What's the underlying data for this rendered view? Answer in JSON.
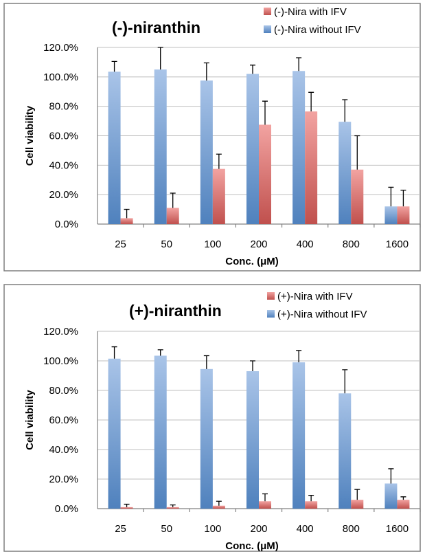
{
  "chart_data": [
    {
      "type": "bar",
      "title": "(-)-niranthin",
      "xlabel": "Conc. (μM)",
      "ylabel": "Cell viability",
      "categories": [
        "25",
        "50",
        "100",
        "200",
        "400",
        "800",
        "1600"
      ],
      "ylim": [
        0,
        120
      ],
      "yticks": [
        "0.0%",
        "20.0%",
        "40.0%",
        "60.0%",
        "80.0%",
        "100.0%",
        "120.0%"
      ],
      "grid": true,
      "legend_position": "top-right",
      "series": [
        {
          "name": "(-)-Nira without IFV",
          "color": "#4f81bd",
          "values": [
            103.5,
            105,
            97.5,
            102,
            104,
            69.5,
            12
          ],
          "errors": [
            7,
            15,
            12,
            6,
            9,
            15,
            13
          ]
        },
        {
          "name": "(-)-Nira with IFV",
          "color": "#c0504d",
          "values": [
            4,
            11,
            37.5,
            67.5,
            76.5,
            37,
            12
          ],
          "errors": [
            6,
            10,
            10,
            16,
            13,
            23,
            11
          ]
        }
      ],
      "legend_order": [
        1,
        0
      ]
    },
    {
      "type": "bar",
      "title": "(+)-niranthin",
      "xlabel": "Conc. (μM)",
      "ylabel": "Cell viability",
      "categories": [
        "25",
        "50",
        "100",
        "200",
        "400",
        "800",
        "1600"
      ],
      "ylim": [
        0,
        120
      ],
      "yticks": [
        "0.0%",
        "20.0%",
        "40.0%",
        "60.0%",
        "80.0%",
        "100.0%",
        "120.0%"
      ],
      "grid": true,
      "legend_position": "top-right",
      "series": [
        {
          "name": "(+)-Nira without IFV",
          "color": "#4f81bd",
          "values": [
            101.5,
            103.5,
            94.5,
            93,
            99,
            78,
            17
          ],
          "errors": [
            8,
            4,
            9,
            7,
            8,
            16,
            10
          ]
        },
        {
          "name": "(+)-Nira with IFV",
          "color": "#c0504d",
          "values": [
            1,
            1,
            2,
            5,
            5,
            6,
            6
          ],
          "errors": [
            2,
            1.5,
            3,
            5,
            4,
            7,
            2
          ]
        }
      ],
      "legend_order": [
        1,
        0
      ]
    }
  ]
}
